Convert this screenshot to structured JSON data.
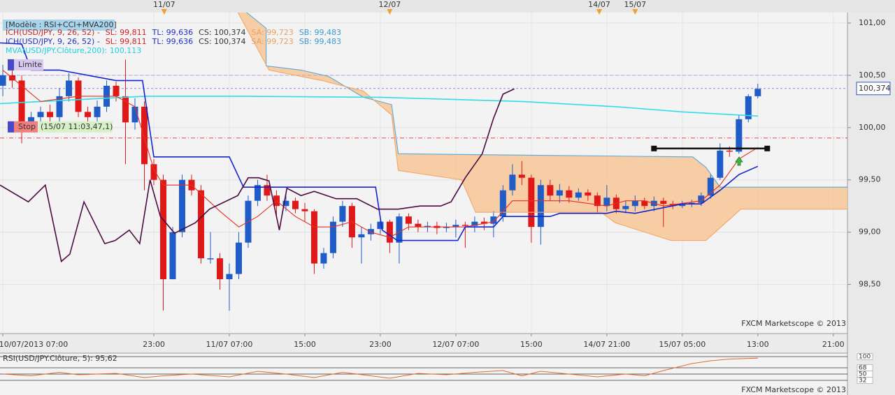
{
  "header": {
    "model": "[Modèle : RSI+CCI+MVA200]",
    "rows": [
      [
        {
          "text": "ICH(USD/JPY, 9, 26, 52) -",
          "color": "#c0282a"
        },
        {
          "text": "SL: 99,811",
          "color": "#d42020"
        },
        {
          "text": "TL: 99,636",
          "color": "#1f2fc8"
        },
        {
          "text": "CS: 100,374",
          "color": "#333333"
        },
        {
          "text": "SA: 99,723",
          "color": "#e8a060"
        },
        {
          "text": "SB: 99,483",
          "color": "#3a9ad0"
        }
      ],
      [
        {
          "text": "ICH(USD/JPY, 9, 26, 52) -",
          "color": "#1f2fc8"
        },
        {
          "text": "SL: 99,811",
          "color": "#d42020"
        },
        {
          "text": "TL: 99,636",
          "color": "#1f2fc8"
        },
        {
          "text": "CS: 100,374",
          "color": "#333333"
        },
        {
          "text": "SA: 99,723",
          "color": "#e8a060"
        },
        {
          "text": "SB: 99,483",
          "color": "#3a9ad0"
        }
      ],
      [
        {
          "text": "MVA(USD/JPY.Clôture,200): 100,113",
          "color": "#20d0e0"
        }
      ]
    ]
  },
  "chart_data": [
    {
      "type": "candlestick",
      "x": [
        0,
        1,
        2,
        3,
        4,
        5,
        6,
        7,
        8,
        9,
        10,
        11,
        12,
        13,
        14,
        15,
        16,
        17,
        18,
        19,
        20,
        21,
        22,
        23,
        24,
        25,
        26,
        27,
        28,
        29,
        30,
        31,
        32,
        33,
        34,
        35,
        36,
        37,
        38,
        39,
        40,
        41,
        42,
        43,
        44,
        45,
        46,
        47,
        48,
        49,
        50,
        51,
        52,
        53,
        54,
        55,
        56,
        57,
        58,
        59,
        60,
        61,
        62,
        63,
        64,
        65,
        66,
        67,
        68,
        69,
        70,
        71,
        72,
        73,
        74,
        75,
        76,
        77,
        78,
        79,
        80
      ],
      "open": [
        100.4,
        100.5,
        100.45,
        100.05,
        100.1,
        100.15,
        100.1,
        100.3,
        100.45,
        100.15,
        100.1,
        100.2,
        100.4,
        100.3,
        100.05,
        100.2,
        99.65,
        99.5,
        98.55,
        99.0,
        99.5,
        99.4,
        98.75,
        98.75,
        98.55,
        98.6,
        98.9,
        99.3,
        99.45,
        99.35,
        99.25,
        99.3,
        99.22,
        99.2,
        98.7,
        98.8,
        99.1,
        99.25,
        98.95,
        98.98,
        99.03,
        99.1,
        98.9,
        99.15,
        99.08,
        99.05,
        99.06,
        99.04,
        99.05,
        99.07,
        99.06,
        99.1,
        99.08,
        99.15,
        99.4,
        99.55,
        99.52,
        99.05,
        99.45,
        99.35,
        99.4,
        99.33,
        99.38,
        99.35,
        99.25,
        99.33,
        99.22,
        99.25,
        99.3,
        99.25,
        99.3,
        99.27,
        99.25,
        99.27,
        99.28,
        99.35,
        99.52,
        99.78,
        99.77,
        100.08,
        100.3
      ],
      "high": [
        100.6,
        100.55,
        100.5,
        100.15,
        100.2,
        100.22,
        100.38,
        100.52,
        100.48,
        100.2,
        100.26,
        100.45,
        100.44,
        100.65,
        100.28,
        100.25,
        99.7,
        99.55,
        99.05,
        99.55,
        99.55,
        99.45,
        99.0,
        98.8,
        98.7,
        99.0,
        99.35,
        99.5,
        99.55,
        99.4,
        99.35,
        99.33,
        99.28,
        99.22,
        98.85,
        99.15,
        99.3,
        99.28,
        99.05,
        99.08,
        99.15,
        99.12,
        99.18,
        99.18,
        99.12,
        99.1,
        99.1,
        99.09,
        99.12,
        99.1,
        99.15,
        99.14,
        99.2,
        99.45,
        99.65,
        99.68,
        99.55,
        99.5,
        99.5,
        99.46,
        99.44,
        99.42,
        99.41,
        99.38,
        99.45,
        99.36,
        99.3,
        99.35,
        99.33,
        99.34,
        99.33,
        99.3,
        99.3,
        99.31,
        99.38,
        99.55,
        99.85,
        99.82,
        100.12,
        100.32,
        100.42
      ],
      "low": [
        100.3,
        100.38,
        99.85,
        99.98,
        100.02,
        100.05,
        100.05,
        100.25,
        100.1,
        100.03,
        100.05,
        100.15,
        100.25,
        99.65,
        99.98,
        99.4,
        99.45,
        98.25,
        98.55,
        98.95,
        99.35,
        98.7,
        98.7,
        98.45,
        98.25,
        98.55,
        98.85,
        99.25,
        99.3,
        99.15,
        99.2,
        99.18,
        99.1,
        98.6,
        98.65,
        98.75,
        99.05,
        98.85,
        98.7,
        98.92,
        98.98,
        98.8,
        98.7,
        99.02,
        99.0,
        99.0,
        98.98,
        99.0,
        98.95,
        98.85,
        99.0,
        99.02,
        98.95,
        99.1,
        99.35,
        99.45,
        98.9,
        98.88,
        99.3,
        99.28,
        99.28,
        99.3,
        99.3,
        99.18,
        99.2,
        99.18,
        99.18,
        99.2,
        99.22,
        99.2,
        99.05,
        99.22,
        99.23,
        99.24,
        99.25,
        99.32,
        99.5,
        99.72,
        99.75,
        100.05,
        100.28
      ],
      "close": [
        100.5,
        100.45,
        100.05,
        100.1,
        100.15,
        100.1,
        100.3,
        100.45,
        100.15,
        100.1,
        100.2,
        100.4,
        100.3,
        100.05,
        100.2,
        99.65,
        99.5,
        98.55,
        99.0,
        99.5,
        99.4,
        98.75,
        98.75,
        98.55,
        98.6,
        98.9,
        99.3,
        99.45,
        99.35,
        99.25,
        99.3,
        99.22,
        99.2,
        98.7,
        98.8,
        99.1,
        99.25,
        98.95,
        98.98,
        99.03,
        99.1,
        98.9,
        99.15,
        99.08,
        99.05,
        99.06,
        99.04,
        99.05,
        99.07,
        99.06,
        99.1,
        99.08,
        99.15,
        99.4,
        99.55,
        99.52,
        99.05,
        99.45,
        99.35,
        99.4,
        99.33,
        99.38,
        99.35,
        99.25,
        99.33,
        99.22,
        99.25,
        99.3,
        99.25,
        99.3,
        99.27,
        99.25,
        99.27,
        99.28,
        99.35,
        99.52,
        99.78,
        99.77,
        100.08,
        100.3,
        100.37
      ],
      "up_color": "#1f5cc8",
      "down_color": "#e01818",
      "cloud_color": "#f7c596",
      "series": [
        {
          "name": "SA",
          "color": "#5aa8d8",
          "cloud": true,
          "x": [
            24.2,
            27.9,
            27.9,
            31.6,
            34.5,
            38.2,
            41.2,
            41.9,
            51.6,
            73.1,
            74.5,
            76.0,
            89.5
          ],
          "values": [
            101.22,
            100.95,
            100.59,
            100.55,
            100.49,
            100.29,
            100.22,
            99.75,
            99.74,
            99.72,
            99.62,
            99.43,
            99.43
          ]
        },
        {
          "name": "SB",
          "color": "#f0a868",
          "cloud": true,
          "x": [
            24.2,
            28.2,
            33.8,
            38.2,
            41.2,
            41.9,
            48.6,
            50.1,
            63.4,
            64.9,
            70.8,
            74.5,
            78.2,
            89.5
          ],
          "values": [
            101.22,
            100.55,
            100.45,
            100.35,
            100.12,
            99.59,
            99.5,
            99.19,
            99.19,
            99.09,
            98.92,
            98.92,
            99.22,
            99.22
          ]
        },
        {
          "name": "MVA200",
          "color": "#30dce8",
          "x": [
            -0.3,
            15,
            25,
            40,
            55,
            65,
            72,
            80
          ],
          "values": [
            100.23,
            100.3,
            100.3,
            100.29,
            100.25,
            100.2,
            100.15,
            100.11
          ]
        },
        {
          "name": "SL",
          "color": "#e83020",
          "x": [
            0,
            4,
            8,
            12,
            14,
            16,
            17,
            20,
            23,
            25,
            27,
            29,
            31,
            33,
            35,
            37,
            39,
            41,
            43,
            47,
            49,
            52,
            54,
            57,
            60,
            64,
            66,
            68,
            70,
            74,
            76,
            78,
            80
          ],
          "values": [
            100.55,
            100.25,
            100.3,
            100.3,
            100.2,
            99.6,
            99.45,
            99.45,
            99.2,
            99.05,
            99.15,
            99.3,
            99.15,
            99.05,
            99.05,
            99.1,
            99.0,
            98.95,
            99.05,
            99.05,
            99.05,
            99.1,
            99.3,
            99.3,
            99.3,
            99.25,
            99.3,
            99.3,
            99.25,
            99.3,
            99.45,
            99.7,
            99.81
          ]
        },
        {
          "name": "TL",
          "color": "#1424d0",
          "x": [
            -0.3,
            2,
            3,
            6,
            12,
            14.8,
            16,
            24,
            25.5,
            29,
            39.5,
            40.2,
            41.8,
            45,
            48.2,
            49,
            52,
            53,
            58,
            59,
            64,
            65,
            67,
            72,
            74,
            76,
            78,
            80
          ],
          "values": [
            100.81,
            100.8,
            100.55,
            100.55,
            100.45,
            100.45,
            99.72,
            99.72,
            99.43,
            99.43,
            99.43,
            99.02,
            98.92,
            98.92,
            98.92,
            99.05,
            99.05,
            99.15,
            99.15,
            99.18,
            99.18,
            99.2,
            99.18,
            99.27,
            99.27,
            99.4,
            99.55,
            99.63
          ]
        },
        {
          "name": "CS",
          "color": "#4a0c40",
          "x": [
            -0.3,
            2.7,
            4.5,
            6.2,
            7.1,
            8.6,
            10.8,
            11.9,
            13.4,
            14.5,
            15.6,
            16.7,
            18.2,
            20.4,
            21.9,
            24.9,
            26.0,
            27.1,
            28.2,
            29.3,
            30.1,
            31.6,
            33.0,
            35.3,
            37.5,
            39.7,
            41.9,
            44.2,
            46.4,
            47.5,
            49.0,
            50.8,
            52.0,
            53.0,
            54.2
          ],
          "values": [
            99.45,
            99.29,
            99.45,
            98.72,
            98.79,
            99.29,
            98.89,
            98.92,
            99.02,
            98.89,
            99.5,
            99.15,
            98.99,
            99.09,
            99.22,
            99.35,
            99.52,
            99.52,
            99.49,
            99.02,
            99.42,
            99.35,
            99.39,
            99.32,
            99.32,
            99.22,
            99.22,
            99.25,
            99.25,
            99.29,
            99.52,
            99.75,
            100.09,
            100.32,
            100.37
          ]
        }
      ],
      "xlim": [
        -0.3,
        89.5
      ],
      "xticks": [
        {
          "value": 0,
          "label": "10/07/2013 07:00"
        },
        {
          "value": 16,
          "label": "23:00"
        },
        {
          "value": 24,
          "label": "11/07 07:00"
        },
        {
          "value": 32,
          "label": "15:00"
        },
        {
          "value": 40,
          "label": "23:00"
        },
        {
          "value": 48,
          "label": "12/07 07:00"
        },
        {
          "value": 56,
          "label": "15:00"
        },
        {
          "value": 64,
          "label": "14/07 21:00"
        },
        {
          "value": 72,
          "label": "15/07 05:00"
        },
        {
          "value": 80,
          "label": "13:00"
        },
        {
          "value": 88,
          "label": "21:00"
        }
      ],
      "ylim": [
        98.03,
        101.1
      ],
      "yticks": [
        {
          "value": 101,
          "label": "101,00"
        },
        {
          "value": 100.5,
          "label": "100,50"
        },
        {
          "value": 100,
          "label": "100,00"
        },
        {
          "value": 99.5,
          "label": "99,50"
        },
        {
          "value": 99,
          "label": "99,00"
        },
        {
          "value": 98.5,
          "label": "98,50"
        }
      ],
      "grid": true,
      "top_markers": [
        {
          "value": 17.1,
          "label": "11/07"
        },
        {
          "value": 41.0,
          "label": "12/07"
        },
        {
          "value": 63.2,
          "label": "14/07"
        },
        {
          "value": 67.0,
          "label": "15/07"
        }
      ],
      "limit": {
        "value": 100.5,
        "label": "Limite"
      },
      "stop": {
        "value": 99.9,
        "label": "Stop",
        "note": "(15/07 11:03,47,1)"
      },
      "last_price": {
        "value": 100.374,
        "label": "100,374"
      },
      "order_line": {
        "value": 99.8,
        "x": [
          69,
          81
        ]
      },
      "watermark": "FXCM Marketscope © 2013"
    },
    {
      "type": "line",
      "title": "RSI(USD/JPY.Clôture, 5): 95,62",
      "series": [
        {
          "name": "RSI",
          "color": "#e86a30",
          "x": [
            0,
            3,
            6,
            8,
            12,
            15,
            17,
            20,
            24,
            27,
            30,
            33,
            36,
            39,
            41,
            44,
            47,
            50,
            53,
            55,
            57,
            60,
            63,
            66,
            68,
            70,
            73,
            75,
            77,
            80
          ],
          "values": [
            50,
            45,
            55,
            48,
            52,
            40,
            45,
            50,
            42,
            58,
            50,
            40,
            55,
            45,
            38,
            52,
            48,
            55,
            60,
            45,
            58,
            50,
            42,
            50,
            45,
            60,
            80,
            88,
            93,
            95.62
          ]
        }
      ],
      "xlim": [
        -0.3,
        89.5
      ],
      "ylim": [
        0,
        100
      ],
      "yticks": [
        100,
        68,
        50,
        32
      ],
      "watermark": "FXCM Marketscope © 2013"
    }
  ]
}
